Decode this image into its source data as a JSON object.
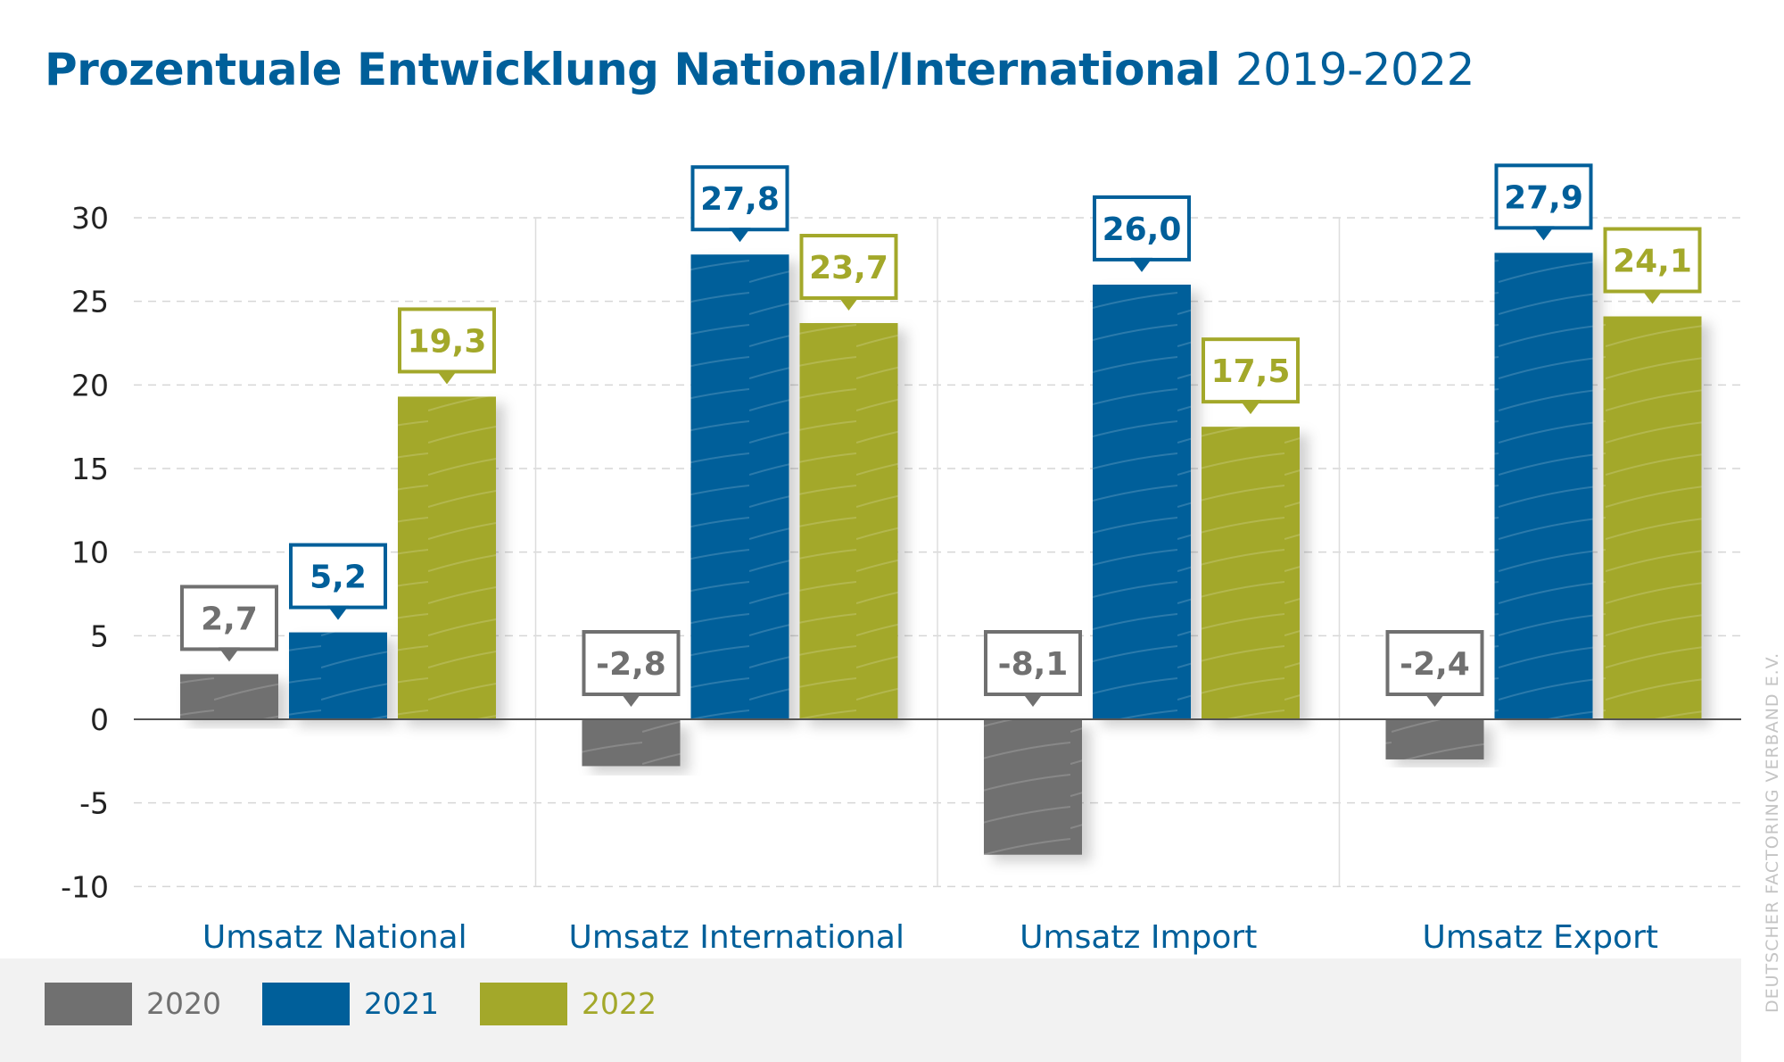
{
  "title": {
    "main": "Prozentuale Entwicklung National/International",
    "years": "2019-2022"
  },
  "colors": {
    "title": "#005f9a",
    "s2020": "#707070",
    "s2021": "#005f9a",
    "s2022": "#a3a82a",
    "grid": "#d6d6d6",
    "zero_line": "#555555",
    "legend_bg": "#f2f2f2"
  },
  "legend": [
    {
      "label": "2020",
      "color": "#707070"
    },
    {
      "label": "2021",
      "color": "#005f9a"
    },
    {
      "label": "2022",
      "color": "#a3a82a"
    }
  ],
  "source": "DEUTSCHER FACTORING VERBAND E.V.",
  "chart_data": {
    "type": "bar",
    "title": "Prozentuale Entwicklung National/International 2019-2022",
    "categories": [
      "Umsatz National",
      "Umsatz International",
      "Umsatz Import",
      "Umsatz Export"
    ],
    "series": [
      {
        "name": "2020",
        "values": [
          2.7,
          -2.8,
          -8.1,
          -2.4
        ],
        "labels": [
          "2,7",
          "-2,8",
          "-8,1",
          "-2,4"
        ],
        "color": "#707070"
      },
      {
        "name": "2021",
        "values": [
          5.2,
          27.8,
          26.0,
          27.9
        ],
        "labels": [
          "5,2",
          "27,8",
          "26,0",
          "27,9"
        ],
        "color": "#005f9a"
      },
      {
        "name": "2022",
        "values": [
          19.3,
          23.7,
          17.5,
          24.1
        ],
        "labels": [
          "19,3",
          "23,7",
          "17,5",
          "24,1"
        ],
        "color": "#a3a82a"
      }
    ],
    "ylim": [
      -10,
      30
    ],
    "yticks": [
      30,
      25,
      20,
      15,
      10,
      5,
      0,
      -5,
      -10
    ],
    "xlabel": "",
    "ylabel": "",
    "grid": true,
    "legend": "bottom-left"
  }
}
